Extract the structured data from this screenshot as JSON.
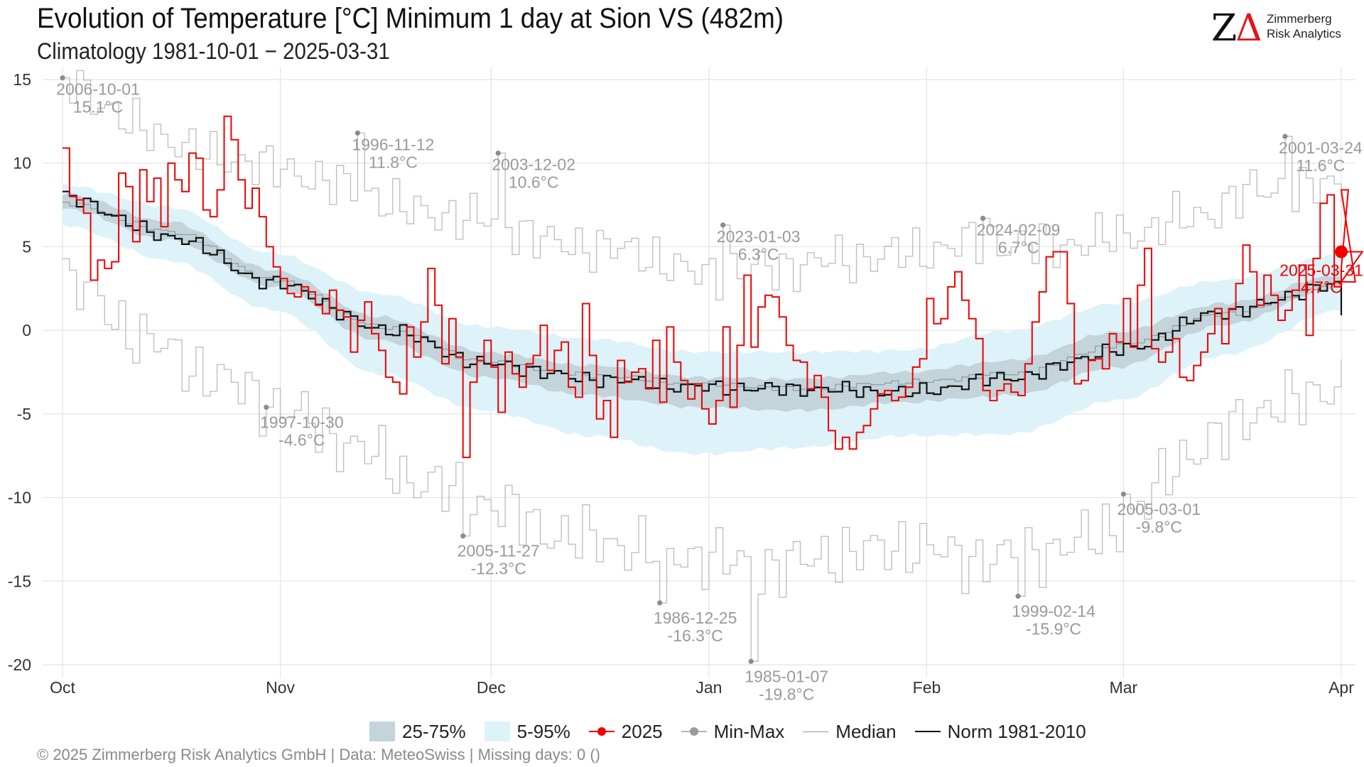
{
  "header": {
    "title": "Evolution of Temperature [°C] Minimum 1 day at Sion  VS (482m)",
    "subtitle": "Climatology 1981-10-01 − 2025-03-31"
  },
  "logo": {
    "mark_z": "Z",
    "mark_delta": "Δ",
    "name_line1": "Zimmerberg",
    "name_line2": "Risk Analytics"
  },
  "legend": {
    "iqr": "25-75%",
    "p90": "5-95%",
    "current": "2025",
    "minmax": "Min-Max",
    "median": "Median",
    "norm": "Norm 1981-2010"
  },
  "footer": "©  2025 Zimmerberg Risk Analytics GmbH | Data: MeteoSwiss | Missing days: 0 ()",
  "colors": {
    "current": "#f00000",
    "norm": "#111111",
    "median": "#8a9ba3",
    "minmax": "#c0c0c0",
    "iqr_band": "#c3d4da",
    "p90_band": "#ddf2f9",
    "annotation": "#9a9a9a"
  },
  "chart_data": {
    "type": "line",
    "x_unit": "day index from 2024-10-01",
    "ylim": [
      -20,
      15
    ],
    "yticks": [
      15,
      10,
      5,
      0,
      -5,
      -10,
      -15,
      -20
    ],
    "month_ticks": [
      {
        "day": 0,
        "label": "Oct"
      },
      {
        "day": 31,
        "label": "Nov"
      },
      {
        "day": 61,
        "label": "Dec"
      },
      {
        "day": 92,
        "label": "Jan"
      },
      {
        "day": 123,
        "label": "Feb"
      },
      {
        "day": 151,
        "label": "Mar"
      },
      {
        "day": 182,
        "label": "Apr"
      }
    ],
    "grid": true,
    "legend_position": "bottom",
    "band_anchors": {
      "days": [
        0,
        15,
        30,
        45,
        60,
        75,
        90,
        105,
        120,
        135,
        150,
        165,
        182
      ],
      "p5": [
        6.3,
        4.2,
        1.2,
        -2.6,
        -4.8,
        -6.3,
        -7.4,
        -7.0,
        -6.3,
        -6.2,
        -4.2,
        -1.5,
        1.2
      ],
      "p25": [
        7.3,
        5.4,
        2.6,
        -0.6,
        -2.8,
        -3.9,
        -4.6,
        -4.8,
        -4.3,
        -3.9,
        -2.2,
        0.3,
        2.6
      ],
      "p75": [
        8.2,
        6.5,
        3.6,
        0.8,
        -1.3,
        -2.1,
        -2.8,
        -2.9,
        -2.5,
        -1.8,
        -0.1,
        1.6,
        3.3
      ],
      "p95": [
        8.7,
        7.4,
        4.6,
        2.2,
        0.2,
        -0.5,
        -1.3,
        -1.3,
        -1.2,
        0.0,
        1.6,
        3.0,
        4.5
      ],
      "median": [
        7.6,
        5.9,
        3.0,
        0.2,
        -1.9,
        -2.7,
        -3.2,
        -3.5,
        -3.1,
        -2.6,
        -0.9,
        1.0,
        2.8
      ]
    },
    "norm_anchors": {
      "days": [
        0,
        15,
        30,
        45,
        60,
        75,
        90,
        105,
        120,
        135,
        150,
        165,
        181
      ],
      "values": [
        7.9,
        5.6,
        2.8,
        0.1,
        -2.0,
        -2.9,
        -3.4,
        -3.5,
        -3.7,
        -2.8,
        -1.2,
        1.1,
        2.7
      ],
      "final_day": 182,
      "final_value": 0.9
    },
    "series_2025": [
      10.9,
      8.0,
      7.8,
      7.0,
      3.0,
      4.2,
      3.7,
      4.1,
      9.4,
      8.6,
      5.3,
      9.6,
      7.7,
      9.1,
      6.2,
      10.0,
      9.0,
      8.3,
      10.6,
      10.3,
      7.2,
      6.8,
      8.4,
      12.8,
      11.4,
      9.0,
      7.3,
      8.5,
      6.8,
      5.0,
      3.8,
      3.1,
      2.2,
      2.0,
      2.6,
      2.3,
      1.5,
      1.0,
      2.4,
      1.2,
      0.8,
      -1.3,
      0.6,
      1.7,
      -0.2,
      -1.2,
      -2.8,
      -3.1,
      -3.8,
      0.2,
      -1.6,
      0.5,
      3.7,
      1.5,
      -2.0,
      0.7,
      -1.6,
      -7.6,
      -3.1,
      -1.8,
      -0.6,
      -2.2,
      -4.9,
      -1.3,
      -2.6,
      -3.4,
      -2.0,
      -1.5,
      0.3,
      -2.4,
      -1.2,
      -0.7,
      -3.4,
      -4.0,
      1.6,
      -1.5,
      -5.3,
      -4.2,
      -6.4,
      -1.8,
      -3.1,
      -2.5,
      -2.3,
      -3.5,
      -0.6,
      -4.3,
      0.2,
      -1.9,
      -3.0,
      -4.1,
      -3.2,
      -4.7,
      -5.6,
      -4.2,
      0.2,
      -4.6,
      -0.9,
      3.3,
      -1.0,
      1.4,
      2.1,
      2.0,
      0.8,
      -0.9,
      -1.8,
      -1.9,
      -3.5,
      -2.7,
      -4.0,
      -6.0,
      -7.1,
      -6.4,
      -7.1,
      -6.1,
      -5.7,
      -4.7,
      -3.8,
      -3.6,
      -4.2,
      -4.0,
      -3.4,
      -2.2,
      -1.7,
      1.9,
      0.4,
      0.7,
      2.6,
      3.5,
      1.8,
      0.7,
      -0.5,
      -3.6,
      -4.2,
      -3.6,
      -3.2,
      -3.7,
      -3.9,
      -2.0,
      0.5,
      2.3,
      4.4,
      4.7,
      4.7,
      1.6,
      -3.2,
      -3.0,
      -1.8,
      -1.7,
      -2.3,
      -0.2,
      -0.7,
      1.9,
      -1.0,
      2.7,
      4.9,
      -1.1,
      -1.9,
      -1.3,
      -0.5,
      -2.8,
      -3.0,
      -2.1,
      -1.3,
      -0.2,
      1.3,
      -0.8,
      1.3,
      2.8,
      5.1,
      3.5,
      1.5,
      3.3,
      2.1,
      0.6,
      1.2,
      2.4,
      3.9,
      -0.3,
      4.3,
      7.6,
      8.1,
      2.6,
      3.7,
      8.4,
      2.9,
      4.7
    ],
    "last_point": {
      "day": 182,
      "value": 4.7,
      "label_date": "2025-03-31",
      "label_value": "4.7°C"
    },
    "max_anchors": {
      "days": [
        0,
        10,
        20,
        30,
        40,
        50,
        60,
        70,
        80,
        90,
        100,
        110,
        120,
        130,
        140,
        150,
        160,
        170,
        182
      ],
      "values": [
        15.1,
        12.2,
        10.5,
        9.7,
        8.6,
        7.1,
        6.6,
        5.2,
        4.8,
        3.4,
        3.7,
        4.2,
        4.6,
        5.3,
        5.0,
        5.6,
        6.7,
        8.4,
        8.6
      ]
    },
    "min_anchors": {
      "days": [
        0,
        10,
        20,
        30,
        40,
        50,
        60,
        70,
        80,
        90,
        100,
        110,
        120,
        130,
        140,
        150,
        160,
        170,
        182
      ],
      "values": [
        3.2,
        -0.2,
        -2.6,
        -4.4,
        -6.7,
        -9.0,
        -10.3,
        -12.2,
        -12.9,
        -13.5,
        -14.2,
        -13.4,
        -12.9,
        -13.7,
        -13.2,
        -11.8,
        -7.4,
        -4.8,
        -3.3
      ]
    },
    "extremes": [
      {
        "day": 0,
        "value": 15.1,
        "date": "2006-10-01",
        "label": "15.1°C"
      },
      {
        "day": 42,
        "value": 11.8,
        "date": "1996-11-12",
        "label": "11.8°C"
      },
      {
        "day": 62,
        "value": 10.6,
        "date": "2003-12-02",
        "label": "10.6°C"
      },
      {
        "day": 94,
        "value": 6.3,
        "date": "2023-01-03",
        "label": "6.3°C"
      },
      {
        "day": 131,
        "value": 6.7,
        "date": "2024-02-09",
        "label": "6.7°C"
      },
      {
        "day": 174,
        "value": 11.6,
        "date": "2001-03-24",
        "label": "11.6°C"
      },
      {
        "day": 29,
        "value": -4.6,
        "date": "1997-10-30",
        "label": "-4.6°C"
      },
      {
        "day": 57,
        "value": -12.3,
        "date": "2005-11-27",
        "label": "-12.3°C"
      },
      {
        "day": 85,
        "value": -16.3,
        "date": "1986-12-25",
        "label": "-16.3°C"
      },
      {
        "day": 98,
        "value": -19.8,
        "date": "1985-01-07",
        "label": "-19.8°C"
      },
      {
        "day": 136,
        "value": -15.9,
        "date": "1999-02-14",
        "label": "-15.9°C"
      },
      {
        "day": 151,
        "value": -9.8,
        "date": "2005-03-01",
        "label": "-9.8°C"
      }
    ]
  }
}
